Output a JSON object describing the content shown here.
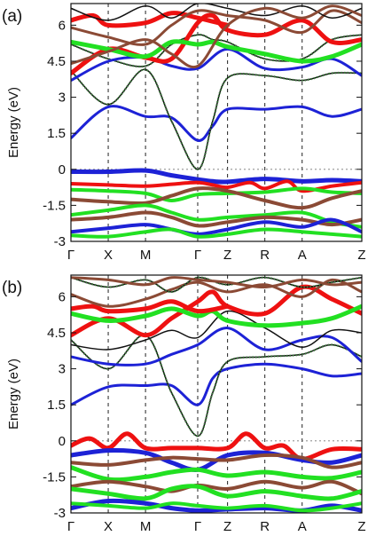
{
  "chart_data": [
    {
      "type": "line",
      "panel_label": "(a)",
      "ylabel": "Energy (eV)",
      "ylim": [
        -3.0,
        6.9
      ],
      "yticks": [
        -3,
        -1.5,
        0,
        1.5,
        3,
        4.5,
        6
      ],
      "ytick_labels": [
        "-3",
        "-1.5",
        "0",
        "1.5",
        "3",
        "4.5",
        "6"
      ],
      "kpath_labels": [
        "Γ",
        "X",
        "M",
        "Γ",
        "Z",
        "R",
        "A",
        "Z"
      ],
      "kpath_pos": [
        0,
        0.5,
        1,
        1.7,
        2.1,
        2.6,
        3.1,
        3.9
      ],
      "fermi_level": 0,
      "grid": "vertical dashed at k-points",
      "colors": {
        "blue": "#1d22d6",
        "red": "#ee1111",
        "green": "#22e022",
        "brown": "#8b4a35",
        "black": "#111111",
        "dotted": "#3c7a3c",
        "orange": "#e08a10"
      },
      "bands": [
        {
          "color": "blue",
          "w": 5,
          "x": [
            0,
            0.5,
            1,
            1.35,
            1.7,
            1.9,
            2.1,
            2.6,
            3.1,
            3.5,
            3.9
          ],
          "y": [
            -0.1,
            -0.1,
            -0.05,
            -0.25,
            -0.42,
            -0.5,
            -0.52,
            -0.4,
            -0.5,
            -0.45,
            -0.5
          ]
        },
        {
          "color": "red",
          "w": 4,
          "x": [
            0,
            0.5,
            1,
            1.35,
            1.7,
            1.9,
            2.1,
            2.4,
            2.6,
            2.9,
            3.1,
            3.5,
            3.9
          ],
          "y": [
            -0.6,
            -0.65,
            -0.7,
            -0.62,
            -0.55,
            -0.65,
            -0.75,
            -0.55,
            -0.8,
            -0.5,
            -0.9,
            -0.7,
            -0.55
          ]
        },
        {
          "color": "green",
          "w": 4,
          "x": [
            0,
            0.5,
            1,
            1.35,
            1.7,
            2.1,
            2.6,
            3.1,
            3.5,
            3.9
          ],
          "y": [
            -0.85,
            -0.9,
            -1.0,
            -1.3,
            -1.05,
            -1.0,
            -0.95,
            -0.8,
            -0.95,
            -1.0
          ]
        },
        {
          "color": "brown",
          "w": 4,
          "x": [
            0,
            0.5,
            1,
            1.35,
            1.7,
            2.1,
            2.6,
            3.1,
            3.5,
            3.9
          ],
          "y": [
            -1.25,
            -1.35,
            -1.4,
            -1.1,
            -0.8,
            -0.9,
            -1.3,
            -1.6,
            -1.2,
            -0.9
          ]
        },
        {
          "color": "green",
          "w": 4,
          "x": [
            0,
            0.5,
            1,
            1.35,
            1.7,
            2.1,
            2.6,
            3.1,
            3.5,
            3.9
          ],
          "y": [
            -1.9,
            -1.7,
            -1.5,
            -1.8,
            -2.1,
            -2.0,
            -1.9,
            -1.8,
            -2.2,
            -2.4
          ]
        },
        {
          "color": "brown",
          "w": 4,
          "x": [
            0,
            0.5,
            1,
            1.35,
            1.7,
            2.1,
            2.6,
            3.1,
            3.5,
            3.9
          ],
          "y": [
            -2.1,
            -2.0,
            -1.8,
            -2.0,
            -2.35,
            -2.2,
            -2.0,
            -2.1,
            -2.3,
            -2.1
          ]
        },
        {
          "color": "blue",
          "w": 4,
          "x": [
            0,
            0.5,
            1,
            1.35,
            1.7,
            2.1,
            2.6,
            3.1,
            3.5,
            3.9
          ],
          "y": [
            -2.6,
            -2.45,
            -2.3,
            -2.5,
            -2.7,
            -2.5,
            -2.2,
            -2.4,
            -2.1,
            -2.6
          ]
        },
        {
          "color": "green",
          "w": 4,
          "x": [
            0,
            0.5,
            1,
            1.35,
            1.7,
            2.1,
            2.6,
            3.1,
            3.5,
            3.9
          ],
          "y": [
            -2.75,
            -2.8,
            -2.6,
            -2.5,
            -2.8,
            -2.7,
            -2.5,
            -2.6,
            -2.7,
            -2.8
          ]
        },
        {
          "color": "blue",
          "w": 3,
          "x": [
            0,
            0.5,
            1,
            1.35,
            1.7,
            1.9,
            2.1,
            2.6,
            3.1,
            3.5,
            3.9
          ],
          "y": [
            1.3,
            2.6,
            2.2,
            2.15,
            1.2,
            1.8,
            2.5,
            2.5,
            2.6,
            2.2,
            2.5
          ]
        },
        {
          "color": "black",
          "w": 1.5,
          "dotted": true,
          "x": [
            0,
            0.5,
            1,
            1.35,
            1.7,
            1.9,
            2.1,
            2.6,
            3.1,
            3.5,
            3.9
          ],
          "y": [
            4.1,
            2.7,
            4.15,
            2.0,
            0.0,
            2.0,
            3.8,
            3.9,
            3.7,
            4.0,
            4.0
          ]
        },
        {
          "color": "black",
          "w": 1.5,
          "dotted": true,
          "x": [
            0,
            0.5,
            1,
            1.35,
            1.7,
            1.9,
            2.1,
            2.6,
            3.1,
            3.5,
            3.9
          ],
          "y": [
            5.2,
            4.6,
            4.3,
            5.2,
            5.6,
            5.4,
            5.3,
            4.6,
            4.6,
            5.4,
            5.6
          ]
        },
        {
          "color": "blue",
          "w": 3,
          "x": [
            0,
            0.5,
            1,
            1.35,
            1.7,
            2.1,
            2.6,
            3.1,
            3.5,
            3.9
          ],
          "y": [
            3.7,
            4.5,
            4.65,
            4.3,
            4.2,
            5.0,
            4.2,
            4.25,
            4.6,
            3.9
          ]
        },
        {
          "color": "red",
          "w": 5,
          "x": [
            0,
            0.5,
            1,
            1.35,
            1.7,
            1.9,
            2.1,
            2.6,
            3.1,
            3.5,
            3.9
          ],
          "y": [
            4.0,
            5.0,
            4.65,
            4.6,
            6.1,
            6.4,
            5.8,
            5.6,
            6.2,
            5.3,
            5.4
          ]
        },
        {
          "color": "green",
          "w": 5,
          "x": [
            0,
            0.5,
            1,
            1.35,
            1.7,
            1.9,
            2.1,
            2.6,
            3.1,
            3.5,
            3.9
          ],
          "y": [
            5.3,
            5.0,
            4.7,
            5.3,
            5.2,
            5.3,
            5.1,
            4.8,
            4.5,
            4.7,
            5.2
          ]
        },
        {
          "color": "red",
          "w": 5,
          "x": [
            0,
            0.3,
            0.5,
            1,
            1.35,
            1.7,
            2.1
          ],
          "y": [
            6.2,
            6.4,
            6.0,
            6.1,
            6.5,
            6.3,
            6.0
          ]
        },
        {
          "color": "brown",
          "w": 3,
          "x": [
            0,
            0.5,
            1,
            1.35,
            1.7,
            2.1,
            2.6,
            3.1,
            3.5,
            3.9
          ],
          "y": [
            5.9,
            5.5,
            5.2,
            6.0,
            6.6,
            6.4,
            6.2,
            5.7,
            6.6,
            6.1
          ]
        },
        {
          "color": "black",
          "w": 1.5,
          "x": [
            0,
            0.5,
            1,
            1.35,
            1.7,
            2.1,
            2.6,
            3.1,
            3.5,
            3.9
          ],
          "y": [
            6.7,
            6.2,
            6.8,
            6.3,
            6.9,
            6.7,
            6.4,
            6.8,
            6.3,
            6.7
          ]
        },
        {
          "color": "brown",
          "w": 3,
          "x": [
            0,
            0.5,
            1,
            1.35,
            1.7,
            2.1,
            2.6,
            3.1,
            3.5,
            3.9
          ],
          "y": [
            4.4,
            4.9,
            5.4,
            4.8,
            4.3,
            6.0,
            6.7,
            6.3,
            6.8,
            6.4
          ]
        }
      ]
    },
    {
      "type": "line",
      "panel_label": "(b)",
      "ylabel": "Energy (eV)",
      "ylim": [
        -3.0,
        6.9
      ],
      "yticks": [
        -3,
        -1.5,
        0,
        1.5,
        3,
        4.5,
        6
      ],
      "ytick_labels": [
        "-3",
        "-1.5",
        "0",
        "1.5",
        "3",
        "4.5",
        "6"
      ],
      "kpath_labels": [
        "Γ",
        "X",
        "M",
        "Γ",
        "Z",
        "R",
        "A",
        "Z"
      ],
      "kpath_pos": [
        0,
        0.5,
        1,
        1.7,
        2.1,
        2.6,
        3.1,
        3.9
      ],
      "fermi_level": 0,
      "grid": "vertical dashed at k-points",
      "colors": {
        "blue": "#1d22d6",
        "red": "#ee1111",
        "green": "#22e022",
        "brown": "#8b4a35",
        "black": "#111111",
        "dotted": "#3c7a3c",
        "orange": "#e08a10"
      },
      "bands": [
        {
          "color": "red",
          "w": 5,
          "x": [
            0,
            0.25,
            0.5,
            0.75,
            1,
            1.35,
            1.7,
            2.1,
            2.35,
            2.6,
            2.85,
            3.1,
            3.5,
            3.9
          ],
          "y": [
            -0.2,
            0.1,
            -0.3,
            0.3,
            -0.3,
            -0.3,
            -0.3,
            -0.3,
            0.3,
            -0.3,
            -0.2,
            -0.75,
            -0.35,
            -0.35
          ]
        },
        {
          "color": "blue",
          "w": 5,
          "x": [
            0,
            0.5,
            1,
            1.35,
            1.7,
            2.1,
            2.6,
            3.1,
            3.5,
            3.9
          ],
          "y": [
            -0.6,
            -0.4,
            -0.5,
            -0.9,
            -1.2,
            -0.6,
            -0.5,
            -0.8,
            -0.9,
            -0.6
          ]
        },
        {
          "color": "brown",
          "w": 4,
          "x": [
            0,
            0.5,
            1,
            1.35,
            1.7,
            2.1,
            2.6,
            3.1,
            3.5,
            3.9
          ],
          "y": [
            -0.9,
            -1.0,
            -0.8,
            -0.7,
            -0.75,
            -0.8,
            -0.6,
            -0.7,
            -1.1,
            -0.9
          ]
        },
        {
          "color": "green",
          "w": 5,
          "x": [
            0,
            0.5,
            1,
            1.35,
            1.7,
            2.1,
            2.6,
            3.1,
            3.5,
            3.9
          ],
          "y": [
            -1.1,
            -1.6,
            -1.5,
            -1.3,
            -1.2,
            -1.45,
            -1.3,
            -1.5,
            -1.55,
            -1.3
          ]
        },
        {
          "color": "brown",
          "w": 4,
          "x": [
            0,
            0.5,
            1,
            1.35,
            1.7,
            2.1,
            2.6,
            3.1,
            3.5,
            3.9
          ],
          "y": [
            -1.9,
            -1.7,
            -1.9,
            -2.1,
            -1.85,
            -2.0,
            -1.7,
            -1.95,
            -1.7,
            -2.2
          ]
        },
        {
          "color": "green",
          "w": 5,
          "x": [
            0,
            0.5,
            1,
            1.35,
            1.7,
            2.1,
            2.6,
            3.1,
            3.5,
            3.9
          ],
          "y": [
            -2.0,
            -2.2,
            -2.4,
            -2.0,
            -1.9,
            -2.3,
            -2.1,
            -2.3,
            -2.4,
            -2.1
          ]
        },
        {
          "color": "blue",
          "w": 5,
          "x": [
            0,
            0.5,
            1,
            1.35,
            1.7,
            2.1,
            2.6,
            3.1,
            3.5,
            3.9
          ],
          "y": [
            -2.8,
            -2.5,
            -2.6,
            -2.8,
            -2.9,
            -2.85,
            -2.8,
            -2.9,
            -2.7,
            -2.9
          ]
        },
        {
          "color": "green",
          "w": 4,
          "x": [
            0,
            0.5,
            1,
            1.35,
            1.7,
            2.1,
            2.6,
            3.1,
            3.5,
            3.9
          ],
          "y": [
            -2.6,
            -2.7,
            -2.8,
            -2.6,
            -2.7,
            -2.8,
            -2.7,
            -2.9,
            -2.8,
            -2.6
          ]
        },
        {
          "color": "blue",
          "w": 3,
          "x": [
            0,
            0.5,
            1,
            1.35,
            1.7,
            1.9,
            2.1,
            2.6,
            3.1,
            3.5,
            3.9
          ],
          "y": [
            1.5,
            2.25,
            2.3,
            2.3,
            1.5,
            2.6,
            3.0,
            3.2,
            3.0,
            2.7,
            2.8
          ]
        },
        {
          "color": "black",
          "w": 1.5,
          "dotted": true,
          "x": [
            0,
            0.5,
            1,
            1.35,
            1.7,
            1.9,
            2.1,
            2.6,
            3.1,
            3.5,
            3.9
          ],
          "y": [
            4.2,
            3.0,
            4.4,
            2.0,
            0.2,
            2.0,
            3.3,
            3.5,
            3.6,
            4.0,
            3.5
          ]
        },
        {
          "color": "blue",
          "w": 3,
          "x": [
            0,
            0.5,
            1,
            1.35,
            1.7,
            2.1,
            2.6,
            3.1,
            3.5,
            3.9
          ],
          "y": [
            3.5,
            3.2,
            3.2,
            3.6,
            4.0,
            4.7,
            3.8,
            4.2,
            4.3,
            3.3
          ]
        },
        {
          "color": "black",
          "w": 1.5,
          "x": [
            0,
            0.5,
            1,
            1.35,
            1.7,
            2.1,
            2.6,
            3.1,
            3.5,
            3.9
          ],
          "y": [
            4.0,
            3.8,
            4.2,
            4.6,
            4.3,
            5.4,
            4.7,
            3.9,
            4.6,
            4.5
          ]
        },
        {
          "color": "red",
          "w": 5,
          "x": [
            0,
            0.5,
            1,
            1.35,
            1.7,
            1.9,
            2.1,
            2.6,
            3.1,
            3.5,
            3.9
          ],
          "y": [
            4.4,
            5.1,
            4.4,
            5.1,
            5.8,
            6.2,
            5.6,
            5.3,
            6.4,
            5.9,
            5.3
          ]
        },
        {
          "color": "green",
          "w": 5,
          "x": [
            0,
            0.5,
            1,
            1.35,
            1.7,
            1.9,
            2.1,
            2.6,
            3.1,
            3.5,
            3.9
          ],
          "y": [
            5.3,
            5.0,
            5.2,
            5.5,
            5.2,
            5.4,
            5.0,
            4.8,
            4.9,
            5.1,
            5.6
          ]
        },
        {
          "color": "red",
          "w": 5,
          "x": [
            0,
            0.3,
            0.5,
            1,
            1.35,
            1.7,
            2.1
          ],
          "y": [
            5.5,
            5.6,
            5.4,
            5.5,
            5.8,
            5.4,
            5.6
          ]
        },
        {
          "color": "brown",
          "w": 3,
          "x": [
            0,
            0.5,
            1,
            1.35,
            1.7,
            2.1,
            2.6,
            3.1,
            3.5,
            3.9
          ],
          "y": [
            6.1,
            5.6,
            5.9,
            6.3,
            6.6,
            6.2,
            6.5,
            6.0,
            6.7,
            6.2
          ]
        },
        {
          "color": "black",
          "w": 1.5,
          "dotted": true,
          "x": [
            0,
            0.5,
            1,
            1.35,
            1.7,
            2.1,
            2.6,
            3.1,
            3.5,
            3.9
          ],
          "y": [
            6.8,
            6.4,
            6.7,
            6.2,
            6.8,
            6.5,
            6.8,
            6.4,
            6.6,
            6.8
          ]
        },
        {
          "color": "brown",
          "w": 3,
          "x": [
            0,
            0.5,
            1,
            1.35,
            1.7,
            2.1,
            2.6,
            3.1,
            3.5,
            3.9
          ],
          "y": [
            6.8,
            6.7,
            6.5,
            6.8,
            6.7,
            6.6,
            6.4,
            6.7,
            6.5,
            6.6
          ]
        }
      ]
    }
  ]
}
